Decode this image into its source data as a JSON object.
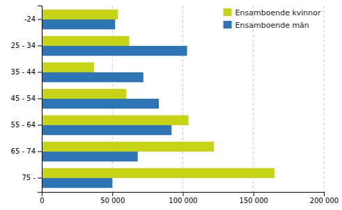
{
  "chart_data": {
    "type": "bar",
    "orientation": "horizontal",
    "categories": [
      "-24",
      "25 - 34",
      "35 - 44",
      "45 - 54",
      "55 - 64",
      "65 - 74",
      "75 -"
    ],
    "series": [
      {
        "name": "Ensamboende kvinnor",
        "color": "#c7d416",
        "values": [
          54000,
          62000,
          37000,
          60000,
          104000,
          122000,
          165000
        ]
      },
      {
        "name": "Ensamboende män",
        "color": "#2e75b6",
        "values": [
          52000,
          103000,
          72000,
          83000,
          92000,
          68000,
          50000
        ]
      }
    ],
    "xlim": [
      0,
      200000
    ],
    "xticks": [
      0,
      {
        "value": 50000,
        "label": "50 000"
      },
      {
        "value": 100000,
        "label": "100 000"
      },
      {
        "value": 150000,
        "label": "150 000"
      },
      {
        "value": 200000,
        "label": "200 000"
      }
    ],
    "grid": true,
    "legend": "upper right"
  }
}
